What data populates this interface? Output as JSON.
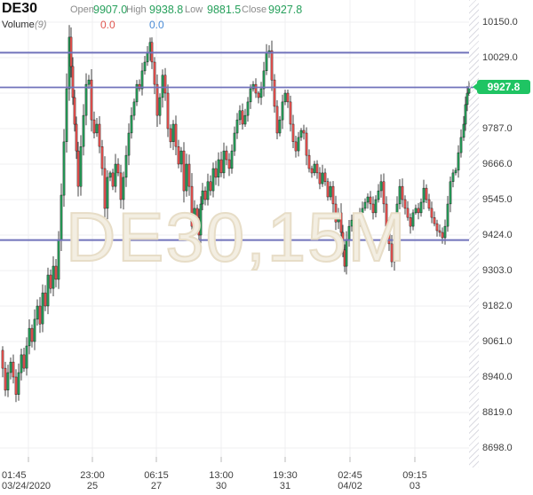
{
  "header": {
    "symbol": "DE30",
    "fields": [
      {
        "label": "Open",
        "value": "9907.0"
      },
      {
        "label": "High",
        "value": "9938.8"
      },
      {
        "label": "Low",
        "value": "9881.5"
      },
      {
        "label": "Close",
        "value": "9927.8"
      }
    ],
    "indicator": {
      "name": "Volume",
      "period": "(9)",
      "value1": "0.0",
      "value2": "0.0"
    }
  },
  "watermark": "DE30,15M",
  "price_badge": {
    "text": "9927.8"
  },
  "colors": {
    "value_green": "#26a05b",
    "volume_red": "#e0564f",
    "volume_blue": "#4a8bd5",
    "candle_up": "#26a05b",
    "candle_down": "#ef5350",
    "wick": "#161616",
    "drawn_line": "#7173bb",
    "badge_green": "#1fc463",
    "grid": "#efeff1"
  },
  "chart_data": {
    "type": "candlestick",
    "symbol": "DE30",
    "timeframe": "15M",
    "title_watermark": "DE30,15M",
    "ohlc": {
      "open": 9907.0,
      "high": 9938.8,
      "low": 9881.5,
      "close": 9927.8
    },
    "current_price": 9927.8,
    "y_ticks": [
      "10150.0",
      "10029.0",
      "9787.0",
      "9666.0",
      "9545.0",
      "9424.0",
      "9303.0",
      "9182.0",
      "9061.0",
      "8940.0",
      "8819.0",
      "8698.0"
    ],
    "y_axis_range": [
      8698.0,
      10150.0
    ],
    "y_tick_step": 121.0,
    "horizontal_lines": [
      10046,
      9407
    ],
    "x_labels": [
      {
        "time": "01:45",
        "date": "03/24/2020"
      },
      {
        "time": "23:00",
        "date": "25"
      },
      {
        "time": "06:15",
        "date": "27"
      },
      {
        "time": "13:00",
        "date": "30"
      },
      {
        "time": "19:30",
        "date": "31"
      },
      {
        "time": "02:45",
        "date": "04/02"
      },
      {
        "time": "09:15",
        "date": "03"
      }
    ],
    "price_path": [
      [
        0,
        9031
      ],
      [
        3,
        8970
      ],
      [
        6,
        8895
      ],
      [
        9,
        8955
      ],
      [
        12,
        8991
      ],
      [
        15,
        8940
      ],
      [
        18,
        8880
      ],
      [
        21,
        8955
      ],
      [
        24,
        9016
      ],
      [
        27,
        8970
      ],
      [
        30,
        9046
      ],
      [
        33,
        9106
      ],
      [
        36,
        9061
      ],
      [
        39,
        9137
      ],
      [
        42,
        9182
      ],
      [
        45,
        9121
      ],
      [
        48,
        9227
      ],
      [
        51,
        9182
      ],
      [
        54,
        9288
      ],
      [
        57,
        9242
      ],
      [
        60,
        9318
      ],
      [
        63,
        9273
      ],
      [
        66,
        9409
      ],
      [
        69,
        9560
      ],
      [
        72,
        9742
      ],
      [
        75,
        9923
      ],
      [
        78,
        10099
      ],
      [
        80,
        9999
      ],
      [
        82,
        9893
      ],
      [
        84,
        9802
      ],
      [
        86,
        9711
      ],
      [
        88,
        9590
      ],
      [
        91,
        9726
      ],
      [
        94,
        9832
      ],
      [
        97,
        9938
      ],
      [
        100,
        9953
      ],
      [
        103,
        9817
      ],
      [
        106,
        9772
      ],
      [
        109,
        9802
      ],
      [
        112,
        9726
      ],
      [
        115,
        9651
      ],
      [
        118,
        9515
      ],
      [
        121,
        9621
      ],
      [
        124,
        9636
      ],
      [
        127,
        9590
      ],
      [
        130,
        9666
      ],
      [
        133,
        9636
      ],
      [
        136,
        9545
      ],
      [
        139,
        9621
      ],
      [
        142,
        9696
      ],
      [
        145,
        9772
      ],
      [
        148,
        9832
      ],
      [
        151,
        9878
      ],
      [
        154,
        9938
      ],
      [
        157,
        9923
      ],
      [
        160,
        9984
      ],
      [
        163,
        10014
      ],
      [
        166,
        10044
      ],
      [
        169,
        10081
      ],
      [
        171,
        10014
      ],
      [
        174,
        9938
      ],
      [
        177,
        9832
      ],
      [
        180,
        9893
      ],
      [
        183,
        9969
      ],
      [
        186,
        9908
      ],
      [
        189,
        9787
      ],
      [
        192,
        9742
      ],
      [
        195,
        9802
      ],
      [
        198,
        9726
      ],
      [
        201,
        9666
      ],
      [
        204,
        9711
      ],
      [
        207,
        9575
      ],
      [
        210,
        9666
      ],
      [
        213,
        9590
      ],
      [
        216,
        9454
      ],
      [
        219,
        9515
      ],
      [
        222,
        9484
      ],
      [
        224,
        9424
      ],
      [
        226,
        9530
      ],
      [
        228,
        9575
      ],
      [
        231,
        9545
      ],
      [
        234,
        9606
      ],
      [
        237,
        9575
      ],
      [
        240,
        9651
      ],
      [
        243,
        9621
      ],
      [
        246,
        9681
      ],
      [
        249,
        9636
      ],
      [
        252,
        9711
      ],
      [
        255,
        9681
      ],
      [
        258,
        9651
      ],
      [
        261,
        9711
      ],
      [
        264,
        9772
      ],
      [
        267,
        9817
      ],
      [
        270,
        9848
      ],
      [
        273,
        9802
      ],
      [
        276,
        9832
      ],
      [
        279,
        9878
      ],
      [
        282,
        9923
      ],
      [
        285,
        9938
      ],
      [
        288,
        9908
      ],
      [
        291,
        9893
      ],
      [
        294,
        9923
      ],
      [
        297,
        9984
      ],
      [
        300,
        10044
      ],
      [
        303,
        10053
      ],
      [
        306,
        9953
      ],
      [
        309,
        9863
      ],
      [
        312,
        9772
      ],
      [
        315,
        9817
      ],
      [
        318,
        9878
      ],
      [
        321,
        9908
      ],
      [
        324,
        9878
      ],
      [
        327,
        9802
      ],
      [
        330,
        9742
      ],
      [
        333,
        9711
      ],
      [
        336,
        9757
      ],
      [
        339,
        9781
      ],
      [
        342,
        9772
      ],
      [
        345,
        9696
      ],
      [
        348,
        9651
      ],
      [
        351,
        9636
      ],
      [
        354,
        9666
      ],
      [
        357,
        9636
      ],
      [
        360,
        9599
      ],
      [
        363,
        9636
      ],
      [
        366,
        9606
      ],
      [
        369,
        9554
      ],
      [
        372,
        9590
      ],
      [
        375,
        9530
      ],
      [
        378,
        9469
      ],
      [
        381,
        9500
      ],
      [
        384,
        9433
      ],
      [
        386,
        9373
      ],
      [
        388,
        9318
      ],
      [
        390,
        9409
      ],
      [
        393,
        9454
      ],
      [
        396,
        9475
      ],
      [
        399,
        9439
      ],
      [
        402,
        9469
      ],
      [
        405,
        9500
      ],
      [
        408,
        9515
      ],
      [
        411,
        9536
      ],
      [
        414,
        9554
      ],
      [
        417,
        9530
      ],
      [
        420,
        9500
      ],
      [
        423,
        9545
      ],
      [
        426,
        9575
      ],
      [
        429,
        9606
      ],
      [
        432,
        9530
      ],
      [
        435,
        9454
      ],
      [
        438,
        9394
      ],
      [
        441,
        9333
      ],
      [
        444,
        9439
      ],
      [
        447,
        9530
      ],
      [
        450,
        9590
      ],
      [
        453,
        9545
      ],
      [
        456,
        9515
      ],
      [
        459,
        9484
      ],
      [
        462,
        9454
      ],
      [
        465,
        9500
      ],
      [
        468,
        9515
      ],
      [
        471,
        9500
      ],
      [
        474,
        9536
      ],
      [
        477,
        9584
      ],
      [
        480,
        9545
      ],
      [
        483,
        9515
      ],
      [
        486,
        9484
      ],
      [
        489,
        9463
      ],
      [
        492,
        9439
      ],
      [
        495,
        9433
      ],
      [
        498,
        9415
      ],
      [
        501,
        9454
      ],
      [
        504,
        9530
      ],
      [
        507,
        9606
      ],
      [
        510,
        9636
      ],
      [
        513,
        9645
      ],
      [
        516,
        9705
      ],
      [
        519,
        9757
      ],
      [
        522,
        9802
      ],
      [
        524,
        9869
      ],
      [
        526,
        9908
      ],
      [
        528,
        9927.8
      ]
    ]
  }
}
